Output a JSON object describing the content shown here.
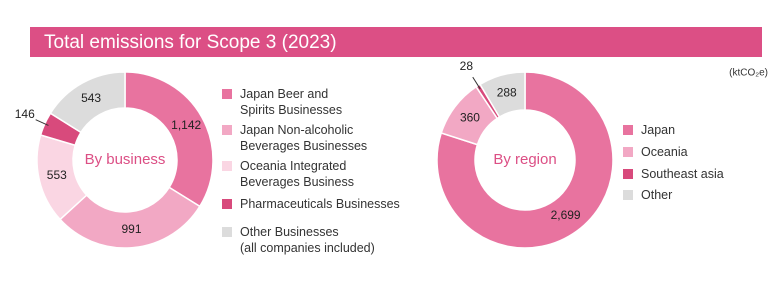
{
  "title": "Total emissions for Scope 3 (2023)",
  "unit": "(ktCO₂e)",
  "chart_data": [
    {
      "type": "pie",
      "title": "By business",
      "categories": [
        "Japan Beer and\nSpirits Businesses",
        "Japan Non-alcoholic\nBeverages Businesses",
        "Oceania Integrated\nBeverages Business",
        "Pharmaceuticals Businesses",
        "Other Businesses\n(all companies included)"
      ],
      "values": [
        1142,
        991,
        553,
        146,
        543
      ],
      "value_labels": [
        "1,142",
        "991",
        "553",
        "146",
        "543"
      ],
      "colors": [
        "#e8739f",
        "#f2a8c4",
        "#fad6e3",
        "#d84a7c",
        "#dcdcdc"
      ]
    },
    {
      "type": "pie",
      "title": "By region",
      "categories": [
        "Japan",
        "Oceania",
        "Southeast asia",
        "Other"
      ],
      "values": [
        2699,
        360,
        28,
        288
      ],
      "value_labels": [
        "2,699",
        "360",
        "28",
        "288"
      ],
      "colors": [
        "#e8739f",
        "#f2a8c4",
        "#d84a7c",
        "#dcdcdc"
      ]
    }
  ]
}
